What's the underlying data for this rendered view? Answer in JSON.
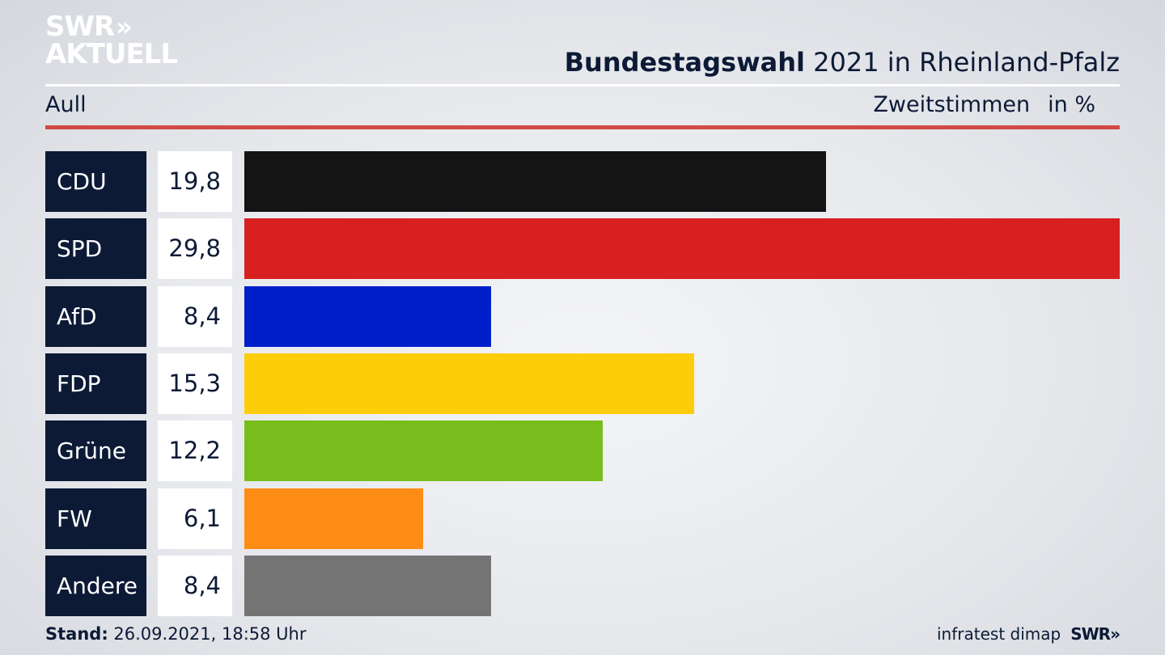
{
  "brand": {
    "line1": "SWR",
    "line2": "AKTUELL",
    "chevron": "»"
  },
  "header": {
    "title_bold": "Bundestagswahl",
    "title_rest": " 2021 in Rheinland-Pfalz"
  },
  "subheader": {
    "left": "Aull",
    "right_label": "Zweitstimmen",
    "right_unit": "in %"
  },
  "footer": {
    "stand_label": "Stand:",
    "stand_value": " 26.09.2021, 18:58 Uhr",
    "source": "infratest dimap",
    "logo": "SWR»"
  },
  "chart_data": {
    "type": "bar",
    "orientation": "horizontal",
    "categories": [
      "CDU",
      "SPD",
      "AfD",
      "FDP",
      "Grüne",
      "FW",
      "Andere"
    ],
    "values": [
      19.8,
      29.8,
      8.4,
      15.3,
      12.2,
      6.1,
      8.4
    ],
    "value_labels": [
      "19,8",
      "29,8",
      "8,4",
      "15,3",
      "12,2",
      "6,1",
      "8,4"
    ],
    "colors": [
      "#141414",
      "#d7201f",
      "#001fcb",
      "#fecd0a",
      "#78bd1b",
      "#fe8d16",
      "#747474"
    ],
    "xlim": [
      0,
      29.8
    ]
  }
}
